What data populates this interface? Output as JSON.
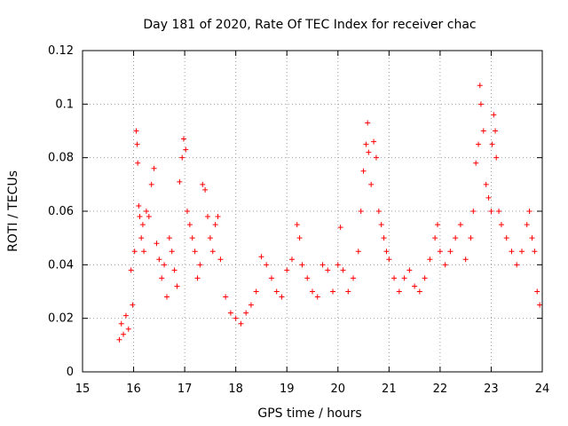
{
  "chart_data": {
    "type": "scatter",
    "title": "Day 181 of 2020, Rate Of TEC Index for receiver chac",
    "xlabel": "GPS time / hours",
    "ylabel": "ROTI / TECUs",
    "xlim": [
      15,
      24
    ],
    "ylim": [
      0,
      0.12
    ],
    "xticks": [
      "15",
      "16",
      "17",
      "18",
      "19",
      "20",
      "21",
      "22",
      "23",
      "24"
    ],
    "yticks": [
      "0",
      "0.02",
      "0.04",
      "0.06",
      "0.08",
      "0.1",
      "0.12"
    ],
    "grid": true,
    "marker": "plus",
    "color": "#ff0000",
    "series": [
      {
        "name": "ROTI",
        "points": [
          [
            15.72,
            0.012
          ],
          [
            15.76,
            0.018
          ],
          [
            15.8,
            0.014
          ],
          [
            15.85,
            0.021
          ],
          [
            15.9,
            0.016
          ],
          [
            15.95,
            0.038
          ],
          [
            15.98,
            0.025
          ],
          [
            16.02,
            0.045
          ],
          [
            16.05,
            0.09
          ],
          [
            16.07,
            0.085
          ],
          [
            16.08,
            0.078
          ],
          [
            16.1,
            0.062
          ],
          [
            16.12,
            0.058
          ],
          [
            16.15,
            0.05
          ],
          [
            16.18,
            0.055
          ],
          [
            16.2,
            0.045
          ],
          [
            16.25,
            0.06
          ],
          [
            16.3,
            0.058
          ],
          [
            16.35,
            0.07
          ],
          [
            16.4,
            0.076
          ],
          [
            16.45,
            0.048
          ],
          [
            16.5,
            0.042
          ],
          [
            16.55,
            0.035
          ],
          [
            16.6,
            0.04
          ],
          [
            16.65,
            0.028
          ],
          [
            16.7,
            0.05
          ],
          [
            16.75,
            0.045
          ],
          [
            16.8,
            0.038
          ],
          [
            16.85,
            0.032
          ],
          [
            16.9,
            0.071
          ],
          [
            16.95,
            0.08
          ],
          [
            16.98,
            0.087
          ],
          [
            17.02,
            0.083
          ],
          [
            17.05,
            0.06
          ],
          [
            17.1,
            0.055
          ],
          [
            17.15,
            0.05
          ],
          [
            17.2,
            0.045
          ],
          [
            17.25,
            0.035
          ],
          [
            17.3,
            0.04
          ],
          [
            17.35,
            0.07
          ],
          [
            17.4,
            0.068
          ],
          [
            17.45,
            0.058
          ],
          [
            17.5,
            0.05
          ],
          [
            17.55,
            0.045
          ],
          [
            17.6,
            0.055
          ],
          [
            17.65,
            0.058
          ],
          [
            17.7,
            0.042
          ],
          [
            17.8,
            0.028
          ],
          [
            17.9,
            0.022
          ],
          [
            18.0,
            0.02
          ],
          [
            18.1,
            0.018
          ],
          [
            18.2,
            0.022
          ],
          [
            18.3,
            0.025
          ],
          [
            18.4,
            0.03
          ],
          [
            18.5,
            0.043
          ],
          [
            18.6,
            0.04
          ],
          [
            18.7,
            0.035
          ],
          [
            18.8,
            0.03
          ],
          [
            18.9,
            0.028
          ],
          [
            19.0,
            0.038
          ],
          [
            19.1,
            0.042
          ],
          [
            19.2,
            0.055
          ],
          [
            19.25,
            0.05
          ],
          [
            19.3,
            0.04
          ],
          [
            19.4,
            0.035
          ],
          [
            19.5,
            0.03
          ],
          [
            19.6,
            0.028
          ],
          [
            19.7,
            0.04
          ],
          [
            19.8,
            0.038
          ],
          [
            19.9,
            0.03
          ],
          [
            20.0,
            0.04
          ],
          [
            20.05,
            0.054
          ],
          [
            20.1,
            0.038
          ],
          [
            20.2,
            0.03
          ],
          [
            20.3,
            0.035
          ],
          [
            20.4,
            0.045
          ],
          [
            20.45,
            0.06
          ],
          [
            20.5,
            0.075
          ],
          [
            20.55,
            0.085
          ],
          [
            20.58,
            0.093
          ],
          [
            20.6,
            0.082
          ],
          [
            20.65,
            0.07
          ],
          [
            20.7,
            0.086
          ],
          [
            20.75,
            0.08
          ],
          [
            20.8,
            0.06
          ],
          [
            20.85,
            0.055
          ],
          [
            20.9,
            0.05
          ],
          [
            20.95,
            0.045
          ],
          [
            21.0,
            0.042
          ],
          [
            21.1,
            0.035
          ],
          [
            21.2,
            0.03
          ],
          [
            21.3,
            0.035
          ],
          [
            21.4,
            0.038
          ],
          [
            21.5,
            0.032
          ],
          [
            21.6,
            0.03
          ],
          [
            21.7,
            0.035
          ],
          [
            21.8,
            0.042
          ],
          [
            21.9,
            0.05
          ],
          [
            21.95,
            0.055
          ],
          [
            22.0,
            0.045
          ],
          [
            22.1,
            0.04
          ],
          [
            22.2,
            0.045
          ],
          [
            22.3,
            0.05
          ],
          [
            22.4,
            0.055
          ],
          [
            22.5,
            0.042
          ],
          [
            22.6,
            0.05
          ],
          [
            22.65,
            0.06
          ],
          [
            22.7,
            0.078
          ],
          [
            22.75,
            0.085
          ],
          [
            22.78,
            0.107
          ],
          [
            22.8,
            0.1
          ],
          [
            22.85,
            0.09
          ],
          [
            22.9,
            0.07
          ],
          [
            22.95,
            0.065
          ],
          [
            23.0,
            0.06
          ],
          [
            23.02,
            0.085
          ],
          [
            23.05,
            0.096
          ],
          [
            23.08,
            0.09
          ],
          [
            23.1,
            0.08
          ],
          [
            23.15,
            0.06
          ],
          [
            23.2,
            0.055
          ],
          [
            23.3,
            0.05
          ],
          [
            23.4,
            0.045
          ],
          [
            23.5,
            0.04
          ],
          [
            23.6,
            0.045
          ],
          [
            23.7,
            0.055
          ],
          [
            23.75,
            0.06
          ],
          [
            23.8,
            0.05
          ],
          [
            23.85,
            0.045
          ],
          [
            23.9,
            0.03
          ],
          [
            23.95,
            0.025
          ]
        ]
      }
    ]
  }
}
